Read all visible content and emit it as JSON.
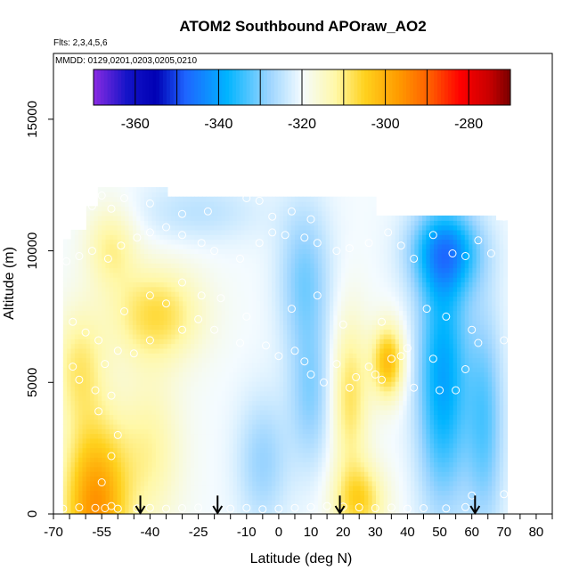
{
  "chart_data": {
    "type": "heatmap",
    "title": "ATOM2 Southbound APOraw_AO2",
    "flights_label": "Flts: 2,3,4,5,6",
    "dates_label": "MMDD: 0129,0201,0203,0205,0210",
    "xlabel": "Latitude (deg N)",
    "ylabel": "Altitude (m)",
    "xlim": [
      -70,
      85
    ],
    "ylim": [
      0,
      17500
    ],
    "x_ticks": [
      -70,
      -55,
      -40,
      -25,
      -10,
      0,
      10,
      20,
      30,
      40,
      50,
      60,
      70,
      80
    ],
    "x_minor_step": 5,
    "y_ticks": [
      0,
      5000,
      10000,
      15000
    ],
    "colorbar": {
      "min": -370,
      "max": -270,
      "tick_values": [
        -360,
        -340,
        -320,
        -300,
        -280
      ],
      "tick_labels": [
        "-360",
        "-340",
        "-320",
        "-300",
        "-280"
      ],
      "divisions": [
        -360,
        -350,
        -340,
        -330,
        -320,
        -310,
        -300,
        -290,
        -280
      ],
      "colors": [
        {
          "v": -370,
          "c": "#8a2be2"
        },
        {
          "v": -362,
          "c": "#1414c8"
        },
        {
          "v": -355,
          "c": "#0000b4"
        },
        {
          "v": -348,
          "c": "#1e64ff"
        },
        {
          "v": -338,
          "c": "#00b4ff"
        },
        {
          "v": -328,
          "c": "#9ad4ff"
        },
        {
          "v": -320,
          "c": "#f4fbff"
        },
        {
          "v": -312,
          "c": "#fff8a8"
        },
        {
          "v": -305,
          "c": "#ffd21e"
        },
        {
          "v": -297,
          "c": "#ff9c00"
        },
        {
          "v": -289,
          "c": "#ff5a00"
        },
        {
          "v": -282,
          "c": "#ff0000"
        },
        {
          "v": -275,
          "c": "#c80000"
        },
        {
          "v": -270,
          "c": "#780000"
        }
      ]
    },
    "profile_arrows_lat": [
      -43,
      -19,
      19,
      61
    ],
    "observation_points": [
      [
        -67,
        200
      ],
      [
        -62,
        250
      ],
      [
        -57,
        230
      ],
      [
        -54,
        220
      ],
      [
        -52,
        300
      ],
      [
        -50,
        200
      ],
      [
        -44,
        210
      ],
      [
        -40,
        230
      ],
      [
        -35,
        200
      ],
      [
        -30,
        220
      ],
      [
        -25,
        240
      ],
      [
        -20,
        220
      ],
      [
        -15,
        200
      ],
      [
        -10,
        230
      ],
      [
        -5,
        180
      ],
      [
        0,
        200
      ],
      [
        5,
        230
      ],
      [
        10,
        260
      ],
      [
        15,
        300
      ],
      [
        20,
        280
      ],
      [
        25,
        250
      ],
      [
        30,
        220
      ],
      [
        35,
        240
      ],
      [
        40,
        200
      ],
      [
        45,
        220
      ],
      [
        52,
        210
      ],
      [
        58,
        260
      ],
      [
        60,
        700
      ],
      [
        70,
        750
      ],
      [
        -55,
        1200
      ],
      [
        -52,
        2200
      ],
      [
        -50,
        3000
      ],
      [
        -56,
        3900
      ],
      [
        -52,
        4500
      ],
      [
        -64,
        5600
      ],
      [
        -62,
        5100
      ],
      [
        -57,
        4700
      ],
      [
        -54,
        5700
      ],
      [
        -50,
        6200
      ],
      [
        -45,
        6100
      ],
      [
        -40,
        6600
      ],
      [
        -30,
        7000
      ],
      [
        -25,
        7400
      ],
      [
        -20,
        7000
      ],
      [
        -12,
        6500
      ],
      [
        -4,
        6400
      ],
      [
        0,
        6000
      ],
      [
        5,
        6200
      ],
      [
        8,
        5800
      ],
      [
        10,
        5300
      ],
      [
        14,
        5000
      ],
      [
        18,
        5700
      ],
      [
        22,
        4800
      ],
      [
        24,
        5200
      ],
      [
        28,
        5600
      ],
      [
        30,
        5300
      ],
      [
        32,
        5100
      ],
      [
        35,
        5900
      ],
      [
        38,
        6000
      ],
      [
        40,
        6300
      ],
      [
        42,
        4800
      ],
      [
        48,
        5900
      ],
      [
        50,
        4700
      ],
      [
        55,
        4700
      ],
      [
        58,
        5500
      ],
      [
        62,
        6500
      ],
      [
        70,
        6600
      ],
      [
        -64,
        7300
      ],
      [
        -60,
        6900
      ],
      [
        -56,
        6600
      ],
      [
        -48,
        7700
      ],
      [
        -40,
        8300
      ],
      [
        -35,
        8000
      ],
      [
        -30,
        8800
      ],
      [
        -24,
        8300
      ],
      [
        -18,
        8200
      ],
      [
        -10,
        7500
      ],
      [
        4,
        7800
      ],
      [
        12,
        8300
      ],
      [
        20,
        7200
      ],
      [
        32,
        7300
      ],
      [
        46,
        7800
      ],
      [
        52,
        7500
      ],
      [
        60,
        7000
      ],
      [
        -66,
        9600
      ],
      [
        -62,
        9800
      ],
      [
        -58,
        10000
      ],
      [
        -53,
        9700
      ],
      [
        -49,
        10200
      ],
      [
        -44,
        10500
      ],
      [
        -40,
        10700
      ],
      [
        -35,
        10900
      ],
      [
        -30,
        10600
      ],
      [
        -24,
        10300
      ],
      [
        -20,
        10000
      ],
      [
        -12,
        9700
      ],
      [
        -6,
        10300
      ],
      [
        -2,
        10700
      ],
      [
        2,
        10600
      ],
      [
        8,
        10500
      ],
      [
        12,
        10300
      ],
      [
        18,
        10000
      ],
      [
        22,
        10100
      ],
      [
        28,
        10300
      ],
      [
        34,
        10700
      ],
      [
        38,
        10200
      ],
      [
        42,
        9700
      ],
      [
        48,
        10600
      ],
      [
        54,
        9900
      ],
      [
        58,
        9800
      ],
      [
        62,
        10400
      ],
      [
        66,
        9900
      ],
      [
        70,
        11300
      ],
      [
        -58,
        11700
      ],
      [
        -55,
        12100
      ],
      [
        -52,
        11600
      ],
      [
        -48,
        12000
      ],
      [
        -40,
        11800
      ],
      [
        -30,
        11400
      ],
      [
        -22,
        11500
      ],
      [
        -10,
        12000
      ],
      [
        -6,
        11900
      ],
      [
        -2,
        11300
      ],
      [
        4,
        11500
      ],
      [
        10,
        11200
      ]
    ]
  }
}
